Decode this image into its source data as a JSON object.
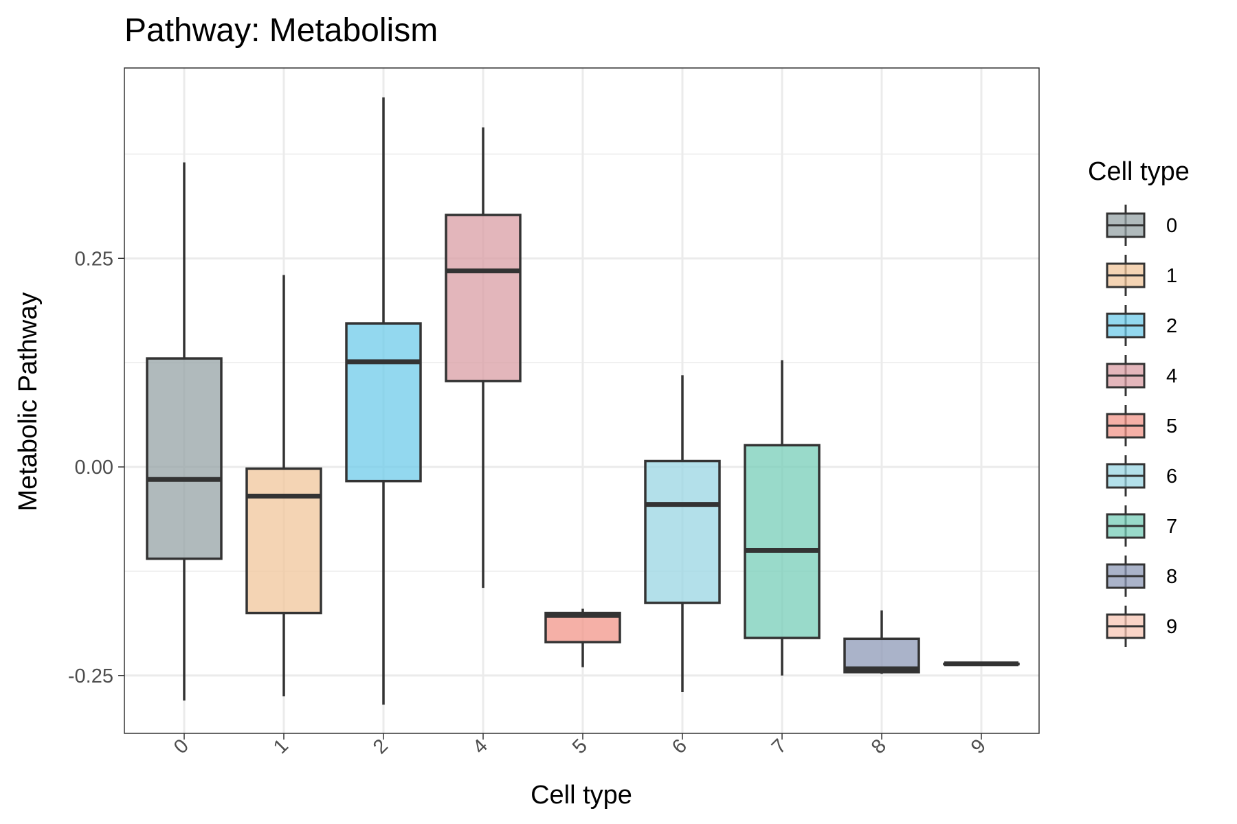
{
  "chart_data": {
    "type": "boxplot",
    "title": "Pathway: Metabolism",
    "xlabel": "Cell type",
    "ylabel": "Metabolic Pathway",
    "categories": [
      "0",
      "1",
      "2",
      "4",
      "5",
      "6",
      "7",
      "8",
      "9"
    ],
    "yticks": [
      -0.25,
      0.0,
      0.25
    ],
    "ytick_labels": [
      "-0.25",
      "0.00",
      "0.25"
    ],
    "ylim": [
      -0.32,
      0.48
    ],
    "grid": true,
    "legend": {
      "title": "Cell type",
      "position": "right"
    },
    "boxes": [
      {
        "category": "0",
        "min": -0.28,
        "q1": -0.11,
        "median": -0.015,
        "q3": 0.13,
        "max": 0.365,
        "color": "#95A3A6"
      },
      {
        "category": "1",
        "min": -0.275,
        "q1": -0.175,
        "median": -0.035,
        "q3": -0.002,
        "max": 0.23,
        "color": "#F0C69B"
      },
      {
        "category": "2",
        "min": -0.285,
        "q1": -0.017,
        "median": 0.126,
        "q3": 0.172,
        "max": 0.443,
        "color": "#6FCBEA"
      },
      {
        "category": "4",
        "min": -0.145,
        "q1": 0.103,
        "median": 0.235,
        "q3": 0.302,
        "max": 0.407,
        "color": "#D99DA4"
      },
      {
        "category": "5",
        "min": -0.24,
        "q1": -0.21,
        "median": -0.178,
        "q3": -0.175,
        "max": -0.17,
        "color": "#F2968A"
      },
      {
        "category": "6",
        "min": -0.27,
        "q1": -0.163,
        "median": -0.045,
        "q3": 0.007,
        "max": 0.11,
        "color": "#99D6E3"
      },
      {
        "category": "7",
        "min": -0.25,
        "q1": -0.205,
        "median": -0.1,
        "q3": 0.026,
        "max": 0.128,
        "color": "#77CDB8"
      },
      {
        "category": "8",
        "min": -0.248,
        "q1": -0.246,
        "median": -0.242,
        "q3": -0.206,
        "max": -0.172,
        "color": "#8E99B7"
      },
      {
        "category": "9",
        "min": -0.236,
        "q1": -0.236,
        "median": -0.236,
        "q3": -0.236,
        "max": -0.236,
        "color": "#F7C5B4"
      }
    ]
  }
}
